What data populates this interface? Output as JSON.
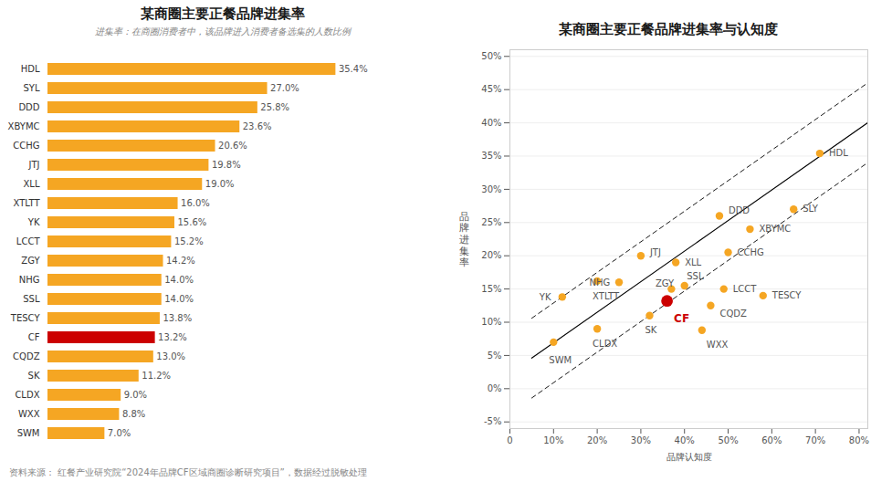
{
  "chart_data": [
    {
      "type": "bar",
      "orientation": "horizontal",
      "title": "某商圈主要正餐品牌进集率",
      "subtitle": "进集率：在商圈消费者中，该品牌进入消费者备选集的人数比例",
      "categories": [
        "HDL",
        "SYL",
        "DDD",
        "XBYMC",
        "CCHG",
        "JTJ",
        "XLL",
        "XTLTT",
        "YK",
        "LCCT",
        "ZGY",
        "NHG",
        "SSL",
        "TESCY",
        "CF",
        "CQDZ",
        "SK",
        "CLDX",
        "WXX",
        "SWM"
      ],
      "values": [
        35.4,
        27.0,
        25.8,
        23.6,
        20.6,
        19.8,
        19.0,
        16.0,
        15.6,
        15.2,
        14.2,
        14.0,
        14.0,
        13.8,
        13.2,
        13.0,
        11.2,
        9.0,
        8.8,
        7.0
      ],
      "value_labels": [
        "35.4%",
        "27.0%",
        "25.8%",
        "23.6%",
        "20.6%",
        "19.8%",
        "19.0%",
        "16.0%",
        "15.6%",
        "15.2%",
        "14.2%",
        "14.0%",
        "14.0%",
        "13.8%",
        "13.2%",
        "13.0%",
        "11.2%",
        "9.0%",
        "8.8%",
        "7.0%"
      ],
      "colors": [
        "#F5A623",
        "#F5A623",
        "#F5A623",
        "#F5A623",
        "#F5A623",
        "#F5A623",
        "#F5A623",
        "#F5A623",
        "#F5A623",
        "#F5A623",
        "#F5A623",
        "#F5A623",
        "#F5A623",
        "#F5A623",
        "#CC0000",
        "#F5A623",
        "#F5A623",
        "#F5A623",
        "#F5A623",
        "#F5A623"
      ],
      "data_labels": true,
      "xlim": [
        0,
        44
      ],
      "tick_labels": "y"
    },
    {
      "type": "scatter",
      "title": "某商圈主要正餐品牌进集率与认知度",
      "xlabel": "品牌认知度",
      "ylabel": "品\n牌\n进\n集\n率",
      "labels": [
        "HDL",
        "SLY",
        "DDD",
        "XBYMC",
        "CCHG",
        "JTJ",
        "XLL",
        "XTLTT",
        "YK",
        "LCCT",
        "ZGY",
        "NHG",
        "SSL",
        "TESCY",
        "CF",
        "CQDZ",
        "SK",
        "CLDX",
        "WXX",
        "SWM"
      ],
      "x": [
        71,
        65,
        48,
        55,
        50,
        30,
        38,
        20,
        12,
        49,
        37,
        25,
        40,
        58,
        36,
        46,
        32,
        20,
        44,
        10
      ],
      "values": [
        35.4,
        27.0,
        26.0,
        24.0,
        20.5,
        20.0,
        19.0,
        16.2,
        13.8,
        15.0,
        15.0,
        16.0,
        15.5,
        14.0,
        13.2,
        12.5,
        11.0,
        9.0,
        8.8,
        7.0
      ],
      "colors": [
        "#F5A623",
        "#F5A623",
        "#F5A623",
        "#F5A623",
        "#F5A623",
        "#F5A623",
        "#F5A623",
        "#F5A623",
        "#F5A623",
        "#F5A623",
        "#F5A623",
        "#F5A623",
        "#F5A623",
        "#F5A623",
        "#CC0000",
        "#F5A623",
        "#F5A623",
        "#F5A623",
        "#F5A623",
        "#F5A623"
      ],
      "lines": [
        {
          "type": "line",
          "x": [
            5,
            82
          ],
          "values": [
            4.6,
            40.02
          ],
          "color": "#000000",
          "line_style": "solid"
        },
        {
          "type": "line",
          "x": [
            5,
            82
          ],
          "values": [
            10.6,
            46.02
          ],
          "color": "#000000",
          "line_style": "dashed"
        },
        {
          "type": "line",
          "x": [
            5,
            82
          ],
          "values": [
            -1.4,
            34.02
          ],
          "color": "#000000",
          "line_style": "dashed"
        }
      ],
      "xlim": [
        0,
        82
      ],
      "xticks": [
        0,
        {
          "value": 10,
          "label": "10%"
        },
        {
          "value": 20,
          "label": "20%"
        },
        {
          "value": 30,
          "label": "30%"
        },
        {
          "value": 40,
          "label": "40%"
        },
        {
          "value": 50,
          "label": "50%"
        },
        {
          "value": 60,
          "label": "60%"
        },
        {
          "value": 70,
          "label": "70%"
        },
        {
          "value": 80,
          "label": "80%"
        }
      ],
      "ylim": [
        -6,
        51
      ],
      "yticks": [
        {
          "value": -5,
          "label": "-5%"
        },
        {
          "value": 0,
          "label": "0%"
        },
        {
          "value": 5,
          "label": "5%"
        },
        {
          "value": 10,
          "label": "10%"
        },
        {
          "value": 15,
          "label": "15%"
        },
        {
          "value": 20,
          "label": "20%"
        },
        {
          "value": 25,
          "label": "25%"
        },
        {
          "value": 30,
          "label": "30%"
        },
        {
          "value": 35,
          "label": "35%"
        },
        {
          "value": 40,
          "label": "40%"
        },
        {
          "value": 45,
          "label": "45%"
        },
        {
          "value": 50,
          "label": "50%"
        }
      ],
      "grid": "y"
    }
  ],
  "footer": "资料来源： 红餐产业研究院“2024年品牌CF区域商圈诊断研究项目”，数据经过脱敏处理"
}
